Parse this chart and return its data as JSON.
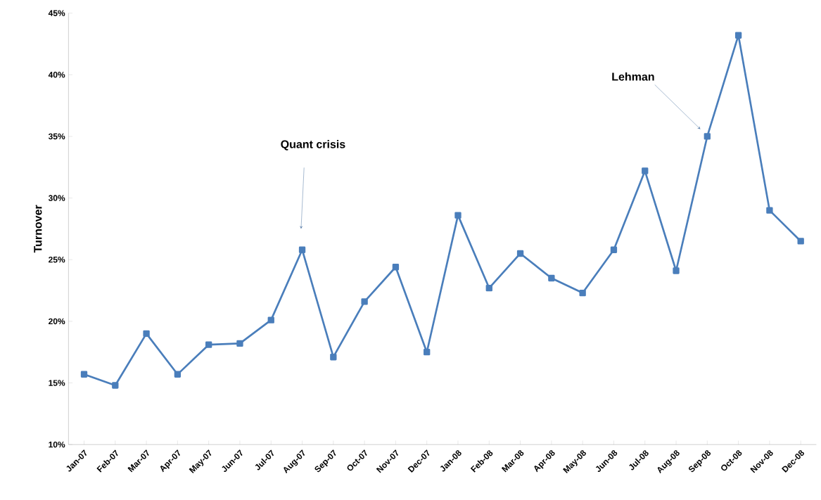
{
  "chart_data": {
    "type": "line",
    "ylabel": "Turnover",
    "categories": [
      "Jan-07",
      "Feb-07",
      "Mar-07",
      "Apr-07",
      "May-07",
      "Jun-07",
      "Jul-07",
      "Aug-07",
      "Sep-07",
      "Oct-07",
      "Nov-07",
      "Dec-07",
      "Jan-08",
      "Feb-08",
      "Mar-08",
      "Apr-08",
      "May-08",
      "Jun-08",
      "Jul-08",
      "Aug-08",
      "Sep-08",
      "Oct-08",
      "Nov-08",
      "Dec-08"
    ],
    "values": [
      15.7,
      14.8,
      19.0,
      15.7,
      18.1,
      18.2,
      20.1,
      25.8,
      17.1,
      21.6,
      24.4,
      17.5,
      28.6,
      22.7,
      25.5,
      23.5,
      22.3,
      25.8,
      32.2,
      24.1,
      35.0,
      43.2,
      29.0,
      26.5
    ],
    "color": "#4a7ebb",
    "marker": "square",
    "line_style": "solid",
    "grid": false,
    "ylim": [
      10,
      45
    ],
    "yticks": [
      {
        "value": 10,
        "label": "10%"
      },
      {
        "value": 15,
        "label": "15%"
      },
      {
        "value": 20,
        "label": "20%"
      },
      {
        "value": 25,
        "label": "25%"
      },
      {
        "value": 30,
        "label": "30%"
      },
      {
        "value": 35,
        "label": "35%"
      },
      {
        "value": 40,
        "label": "40%"
      },
      {
        "value": 45,
        "label": "45%"
      }
    ],
    "annotations": [
      "Quant crisis",
      "Lehman"
    ]
  }
}
